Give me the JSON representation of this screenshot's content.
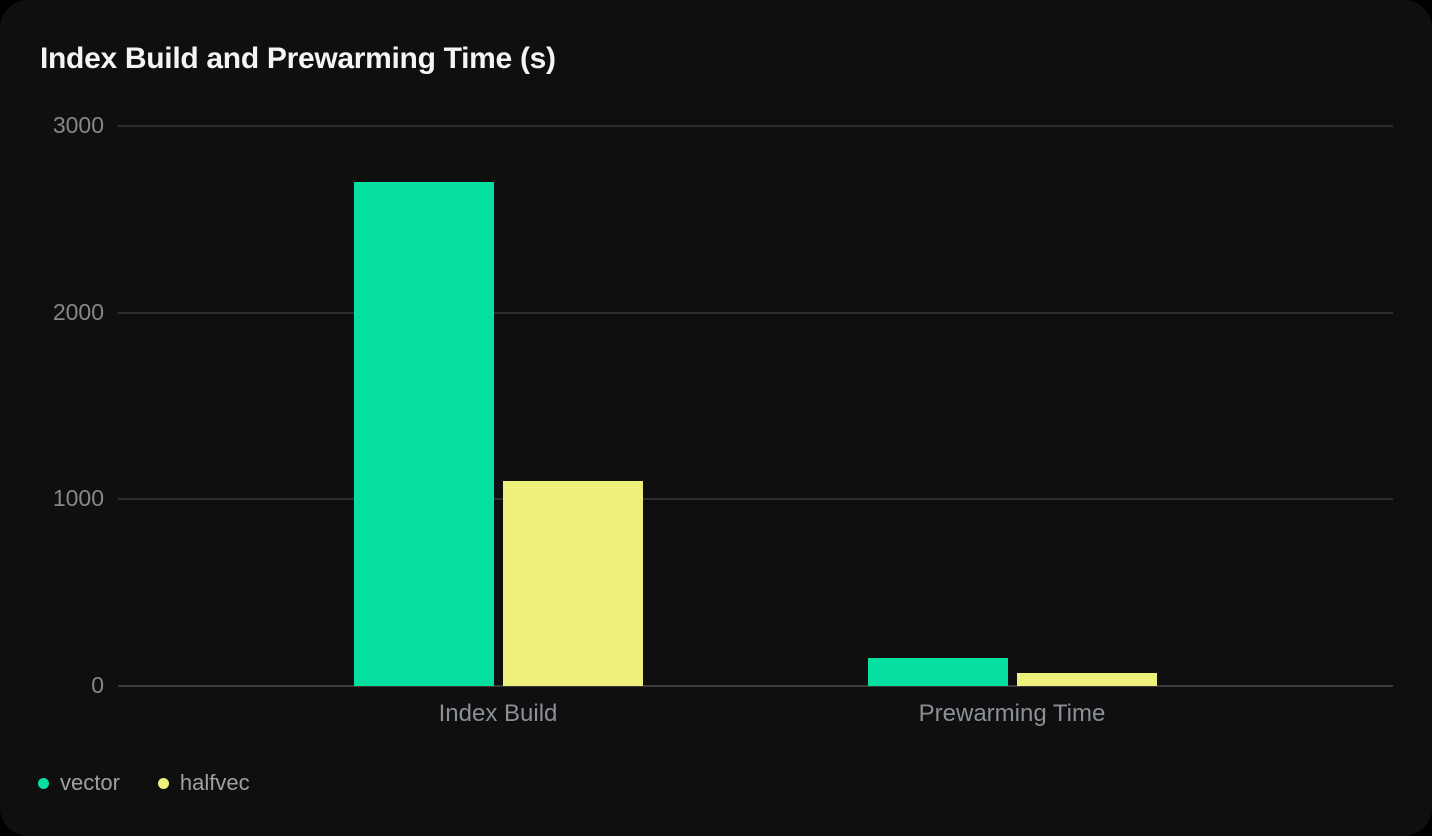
{
  "chart": {
    "title": "Index Build and Prewarming Time (s)"
  },
  "chart_data": {
    "type": "bar",
    "title": "Index Build and Prewarming Time (s)",
    "categories": [
      "Index Build",
      "Prewarming Time"
    ],
    "series": [
      {
        "name": "vector",
        "color": "#05DFA0",
        "values": [
          2700,
          150
        ]
      },
      {
        "name": "halfvec",
        "color": "#EDF07A",
        "values": [
          1100,
          70
        ]
      }
    ],
    "xlabel": "",
    "ylabel": "",
    "ylim": [
      0,
      3000
    ],
    "y_ticks": [
      0,
      1000,
      2000,
      3000
    ],
    "grid": "horizontal",
    "legend_position": "bottom-left"
  },
  "theme": {
    "page_bg": "#000000",
    "card_bg": "#0E0F0E",
    "title_color": "#F3F4F4",
    "grid_color": "#2D2F2E",
    "zero_line_color": "#3A3C3B",
    "tick_text_color": "#85878A",
    "category_text_color": "#8B8F97",
    "legend_text_color": "#9DA0A5"
  }
}
